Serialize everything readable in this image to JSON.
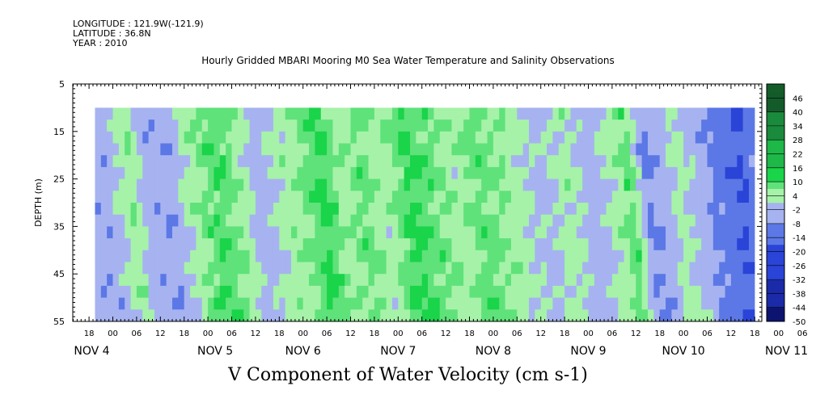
{
  "header": {
    "longitude": "LONGITUDE : 121.9W(-121.9)",
    "latitude": "LATITUDE : 36.8N",
    "year": "YEAR : 2010"
  },
  "chart_data": {
    "type": "heatmap",
    "title": "Hourly Gridded MBARI Mooring M0 Sea Water Temperature and Salinity Observations",
    "bottom_title": "V Component of Water Velocity (cm s-1)",
    "ylabel": "DEPTH (m)",
    "y_ticks": [
      "5",
      "15",
      "25",
      "35",
      "45",
      "55"
    ],
    "ylim": [
      5,
      55
    ],
    "y_inverted": true,
    "hour_ticks": [
      "18",
      "00",
      "06",
      "12",
      "18",
      "00",
      "06",
      "12",
      "18",
      "00",
      "06",
      "12",
      "18",
      "00",
      "06",
      "12",
      "18",
      "00",
      "06",
      "12",
      "18",
      "00",
      "06",
      "12",
      "18",
      "00",
      "06",
      "12",
      "18",
      "00",
      "06",
      "12"
    ],
    "day_labels": [
      "NOV  4",
      "NOV  5",
      "NOV  6",
      "NOV  7",
      "NOV  8",
      "NOV  9",
      "NOV 10",
      "NOV 11"
    ],
    "colorbar_ticks": [
      "46",
      "40",
      "34",
      "28",
      "22",
      "16",
      "10",
      "4",
      "-2",
      "-8",
      "-14",
      "-20",
      "-26",
      "-32",
      "-38",
      "-44",
      "-50"
    ],
    "colorbar_range": [
      -50,
      52
    ],
    "time_range_hours_from_nov4_00": [
      -4.5,
      234
    ],
    "data_depth_range": [
      10,
      55
    ],
    "palette": {
      "neg_strong": "#2a44d8",
      "neg_mid": "#5c78e6",
      "neg_weak": "#a6b3f0",
      "pos_weak": "#a6f2a8",
      "pos_mid": "#5fe27a",
      "pos_strong": "#1ad44a"
    },
    "v_time_series": [
      {
        "t": -4,
        "v": -6
      },
      {
        "t": 2,
        "v": 6
      },
      {
        "t": 6,
        "v": -5
      },
      {
        "t": 12,
        "v": -7
      },
      {
        "t": 18,
        "v": 5
      },
      {
        "t": 24,
        "v": 12
      },
      {
        "t": 28,
        "v": 8
      },
      {
        "t": 34,
        "v": -4
      },
      {
        "t": 40,
        "v": 2
      },
      {
        "t": 46,
        "v": 8
      },
      {
        "t": 50,
        "v": 13
      },
      {
        "t": 56,
        "v": 4
      },
      {
        "t": 60,
        "v": 9
      },
      {
        "t": 66,
        "v": 3
      },
      {
        "t": 72,
        "v": 13
      },
      {
        "t": 78,
        "v": 9
      },
      {
        "t": 84,
        "v": 4
      },
      {
        "t": 90,
        "v": 10
      },
      {
        "t": 96,
        "v": 6
      },
      {
        "t": 100,
        "v": 2
      },
      {
        "t": 106,
        "v": -3
      },
      {
        "t": 112,
        "v": 4
      },
      {
        "t": 118,
        "v": -5
      },
      {
        "t": 124,
        "v": 3
      },
      {
        "t": 128,
        "v": 11
      },
      {
        "t": 132,
        "v": -10
      },
      {
        "t": 136,
        "v": -7
      },
      {
        "t": 140,
        "v": 3
      },
      {
        "t": 146,
        "v": -4
      },
      {
        "t": 150,
        "v": -12
      },
      {
        "t": 156,
        "v": -18
      },
      {
        "t": 162,
        "v": -8
      },
      {
        "t": 168,
        "v": -4
      },
      {
        "t": 172,
        "v": 2
      },
      {
        "t": 178,
        "v": -10
      },
      {
        "t": 184,
        "v": -16
      },
      {
        "t": 190,
        "v": -20
      },
      {
        "t": 196,
        "v": -13
      },
      {
        "t": 202,
        "v": -5
      },
      {
        "t": 208,
        "v": -18
      },
      {
        "t": 214,
        "v": -12
      },
      {
        "t": 220,
        "v": -2
      },
      {
        "t": 226,
        "v": 5
      },
      {
        "t": 232,
        "v": -16
      }
    ]
  }
}
